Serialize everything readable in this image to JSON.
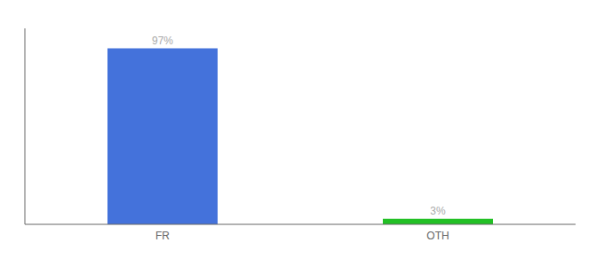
{
  "chart_data": {
    "type": "bar",
    "categories": [
      "FR",
      "OTH"
    ],
    "values": [
      97,
      3
    ],
    "colors": [
      "#4472db",
      "#22c025"
    ],
    "value_labels": [
      "97%",
      "3%"
    ],
    "data_labels": true,
    "ylim": [
      0,
      108
    ],
    "tick_labels": "x",
    "grid": false
  }
}
